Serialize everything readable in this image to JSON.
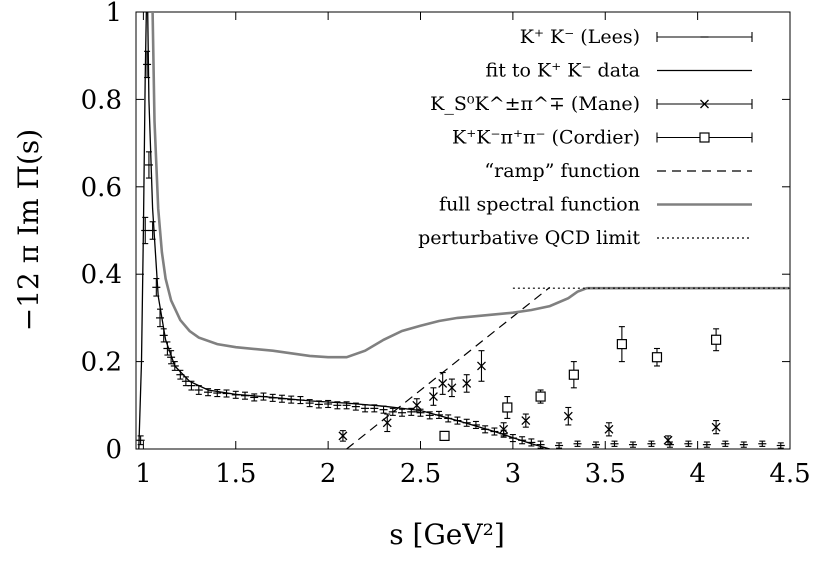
{
  "chart_data": {
    "type": "line",
    "xlabel": "s [GeV²]",
    "ylabel": "−12 π Im Π(s)",
    "xlim": [
      0.96,
      4.5
    ],
    "ylim": [
      0,
      1
    ],
    "x_ticks": [
      "1",
      "1.5",
      "2",
      "2.5",
      "3",
      "3.5",
      "4",
      "4.5"
    ],
    "x_tick_values": [
      1,
      1.5,
      2,
      2.5,
      3,
      3.5,
      4,
      4.5
    ],
    "y_ticks": [
      "0",
      "0.2",
      "0.4",
      "0.6",
      "0.8",
      "1"
    ],
    "y_tick_values": [
      0,
      0.2,
      0.4,
      0.6,
      0.8,
      1
    ],
    "grid": false,
    "legend_position": "top-right",
    "series": [
      {
        "name": "K⁺ K⁻ (Lees)",
        "kind": "errorbar-points",
        "marker": "plus",
        "color": "#000000",
        "points": [
          [
            0.985,
            0.02,
            0.01
          ],
          [
            1.01,
            0.5,
            0.03
          ],
          [
            1.02,
            0.88,
            0.03
          ],
          [
            1.03,
            0.65,
            0.03
          ],
          [
            1.05,
            0.5,
            0.02
          ],
          [
            1.07,
            0.37,
            0.02
          ],
          [
            1.09,
            0.3,
            0.02
          ],
          [
            1.11,
            0.26,
            0.015
          ],
          [
            1.13,
            0.23,
            0.015
          ],
          [
            1.15,
            0.21,
            0.015
          ],
          [
            1.17,
            0.19,
            0.01
          ],
          [
            1.2,
            0.17,
            0.01
          ],
          [
            1.23,
            0.155,
            0.01
          ],
          [
            1.26,
            0.145,
            0.01
          ],
          [
            1.3,
            0.135,
            0.01
          ],
          [
            1.35,
            0.13,
            0.008
          ],
          [
            1.4,
            0.128,
            0.008
          ],
          [
            1.45,
            0.127,
            0.008
          ],
          [
            1.5,
            0.124,
            0.008
          ],
          [
            1.55,
            0.122,
            0.008
          ],
          [
            1.6,
            0.118,
            0.008
          ],
          [
            1.65,
            0.12,
            0.008
          ],
          [
            1.7,
            0.117,
            0.008
          ],
          [
            1.75,
            0.115,
            0.008
          ],
          [
            1.8,
            0.113,
            0.008
          ],
          [
            1.85,
            0.112,
            0.008
          ],
          [
            1.9,
            0.105,
            0.008
          ],
          [
            1.95,
            0.102,
            0.008
          ],
          [
            2.0,
            0.103,
            0.008
          ],
          [
            2.05,
            0.1,
            0.008
          ],
          [
            2.1,
            0.1,
            0.008
          ],
          [
            2.15,
            0.097,
            0.008
          ],
          [
            2.2,
            0.093,
            0.008
          ],
          [
            2.25,
            0.093,
            0.008
          ],
          [
            2.3,
            0.09,
            0.008
          ],
          [
            2.35,
            0.085,
            0.008
          ],
          [
            2.4,
            0.083,
            0.008
          ],
          [
            2.45,
            0.085,
            0.008
          ],
          [
            2.5,
            0.083,
            0.008
          ],
          [
            2.55,
            0.077,
            0.008
          ],
          [
            2.6,
            0.078,
            0.008
          ],
          [
            2.65,
            0.07,
            0.008
          ],
          [
            2.7,
            0.065,
            0.008
          ],
          [
            2.75,
            0.06,
            0.008
          ],
          [
            2.8,
            0.055,
            0.008
          ],
          [
            2.85,
            0.045,
            0.008
          ],
          [
            2.9,
            0.04,
            0.008
          ],
          [
            2.95,
            0.035,
            0.008
          ],
          [
            3.0,
            0.025,
            0.008
          ],
          [
            3.05,
            0.02,
            0.008
          ],
          [
            3.1,
            0.015,
            0.008
          ],
          [
            3.15,
            0.01,
            0.008
          ],
          [
            3.25,
            0.008,
            0.006
          ],
          [
            3.35,
            0.012,
            0.006
          ],
          [
            3.45,
            0.01,
            0.006
          ],
          [
            3.55,
            0.012,
            0.006
          ],
          [
            3.65,
            0.01,
            0.006
          ],
          [
            3.75,
            0.012,
            0.006
          ],
          [
            3.85,
            0.01,
            0.006
          ],
          [
            3.95,
            0.012,
            0.006
          ],
          [
            4.05,
            0.01,
            0.006
          ],
          [
            4.15,
            0.012,
            0.006
          ],
          [
            4.25,
            0.01,
            0.006
          ],
          [
            4.35,
            0.012,
            0.006
          ],
          [
            4.45,
            0.008,
            0.006
          ]
        ]
      },
      {
        "name": "fit to K⁺ K⁻ data",
        "kind": "line",
        "style": "solid-thin",
        "color": "#000000",
        "points": [
          [
            0.975,
            0.0
          ],
          [
            0.99,
            0.2
          ],
          [
            1.0,
            0.5
          ],
          [
            1.01,
            0.85
          ],
          [
            1.02,
            1.1
          ],
          [
            1.03,
            0.8
          ],
          [
            1.05,
            0.55
          ],
          [
            1.08,
            0.35
          ],
          [
            1.12,
            0.25
          ],
          [
            1.17,
            0.19
          ],
          [
            1.25,
            0.155
          ],
          [
            1.35,
            0.135
          ],
          [
            1.5,
            0.125
          ],
          [
            1.7,
            0.118
          ],
          [
            1.9,
            0.11
          ],
          [
            2.1,
            0.105
          ],
          [
            2.3,
            0.098
          ],
          [
            2.5,
            0.088
          ],
          [
            2.7,
            0.065
          ],
          [
            2.9,
            0.04
          ],
          [
            3.1,
            0.012
          ],
          [
            3.2,
            0.0
          ]
        ]
      },
      {
        "name": "K_S⁰K^±π^∓ (Mane)",
        "kind": "errorbar-points",
        "marker": "cross",
        "color": "#000000",
        "points": [
          [
            2.08,
            0.03,
            0.012
          ],
          [
            2.32,
            0.06,
            0.02
          ],
          [
            2.48,
            0.1,
            0.015
          ],
          [
            2.57,
            0.12,
            0.02
          ],
          [
            2.62,
            0.15,
            0.025
          ],
          [
            2.67,
            0.14,
            0.02
          ],
          [
            2.75,
            0.15,
            0.02
          ],
          [
            2.83,
            0.19,
            0.035
          ],
          [
            2.95,
            0.045,
            0.015
          ],
          [
            3.07,
            0.065,
            0.015
          ],
          [
            3.3,
            0.075,
            0.02
          ],
          [
            3.52,
            0.045,
            0.015
          ],
          [
            3.84,
            0.02,
            0.01
          ],
          [
            4.1,
            0.05,
            0.015
          ]
        ]
      },
      {
        "name": "K⁺K⁻π⁺π⁻ (Cordier)",
        "kind": "errorbar-points",
        "marker": "square",
        "color": "#000000",
        "points": [
          [
            2.63,
            0.03,
            0.005
          ],
          [
            2.97,
            0.095,
            0.025
          ],
          [
            3.15,
            0.12,
            0.015
          ],
          [
            3.33,
            0.17,
            0.03
          ],
          [
            3.59,
            0.24,
            0.04
          ],
          [
            3.78,
            0.21,
            0.02
          ],
          [
            4.1,
            0.25,
            0.025
          ]
        ]
      },
      {
        "name": "“ramp” function",
        "kind": "line",
        "style": "dashed",
        "color": "#000000",
        "points": [
          [
            2.1,
            0.0
          ],
          [
            3.2,
            0.37
          ]
        ]
      },
      {
        "name": "full spectral function",
        "kind": "line",
        "style": "solid-thick",
        "color": "#808080",
        "points": [
          [
            1.05,
            1.0
          ],
          [
            1.06,
            0.75
          ],
          [
            1.08,
            0.55
          ],
          [
            1.1,
            0.45
          ],
          [
            1.12,
            0.39
          ],
          [
            1.15,
            0.34
          ],
          [
            1.2,
            0.295
          ],
          [
            1.25,
            0.27
          ],
          [
            1.3,
            0.255
          ],
          [
            1.4,
            0.24
          ],
          [
            1.5,
            0.233
          ],
          [
            1.7,
            0.225
          ],
          [
            1.9,
            0.213
          ],
          [
            2.0,
            0.21
          ],
          [
            2.1,
            0.21
          ],
          [
            2.2,
            0.225
          ],
          [
            2.3,
            0.25
          ],
          [
            2.4,
            0.27
          ],
          [
            2.5,
            0.282
          ],
          [
            2.6,
            0.293
          ],
          [
            2.7,
            0.3
          ],
          [
            2.9,
            0.308
          ],
          [
            3.0,
            0.312
          ],
          [
            3.1,
            0.318
          ],
          [
            3.2,
            0.327
          ],
          [
            3.3,
            0.345
          ],
          [
            3.35,
            0.36
          ],
          [
            3.4,
            0.368
          ],
          [
            3.6,
            0.368
          ],
          [
            4.0,
            0.368
          ],
          [
            4.5,
            0.368
          ]
        ]
      },
      {
        "name": "perturbative QCD limit",
        "kind": "line",
        "style": "dotted",
        "color": "#000000",
        "points": [
          [
            3.0,
            0.368
          ],
          [
            4.5,
            0.368
          ]
        ]
      }
    ]
  }
}
